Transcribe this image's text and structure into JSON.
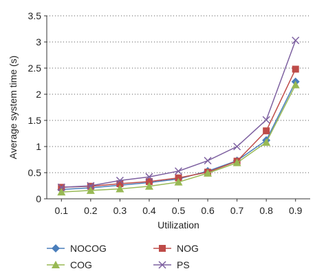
{
  "chart_data": {
    "type": "line",
    "title": "",
    "xlabel": "Utilization",
    "ylabel": "Average system time (s)",
    "x": [
      0.1,
      0.2,
      0.3,
      0.4,
      0.5,
      0.6,
      0.7,
      0.8,
      0.9
    ],
    "x_tick_labels": [
      "0.1",
      "0.2",
      "0.3",
      "0.4",
      "0.5",
      "0.6",
      "0.7",
      "0.8",
      "0.9"
    ],
    "xlim": [
      0.05,
      0.95
    ],
    "ylim": [
      0,
      3.5
    ],
    "y_ticks": [
      0,
      0.5,
      1,
      1.5,
      2,
      2.5,
      3,
      3.5
    ],
    "y_tick_labels": [
      "0",
      "0.5",
      "1",
      "1.5",
      "2",
      "2.5",
      "3",
      "3.5"
    ],
    "grid": "horizontal dotted",
    "legend_position": "bottom",
    "series": [
      {
        "name": "NOCOG",
        "marker": "diamond",
        "color": "#4a7ebb",
        "values": [
          0.18,
          0.21,
          0.26,
          0.31,
          0.38,
          0.53,
          0.73,
          1.12,
          2.24
        ]
      },
      {
        "name": "NOG",
        "marker": "square",
        "color": "#be4b48",
        "values": [
          0.22,
          0.24,
          0.29,
          0.33,
          0.4,
          0.51,
          0.72,
          1.3,
          2.48
        ]
      },
      {
        "name": "COG",
        "marker": "triangle",
        "color": "#98b954",
        "values": [
          0.13,
          0.16,
          0.19,
          0.24,
          0.32,
          0.49,
          0.69,
          1.08,
          2.18
        ]
      },
      {
        "name": "PS",
        "marker": "x",
        "color": "#7d60a0",
        "values": [
          0.22,
          0.25,
          0.35,
          0.42,
          0.53,
          0.73,
          1.0,
          1.51,
          3.03
        ]
      }
    ]
  }
}
